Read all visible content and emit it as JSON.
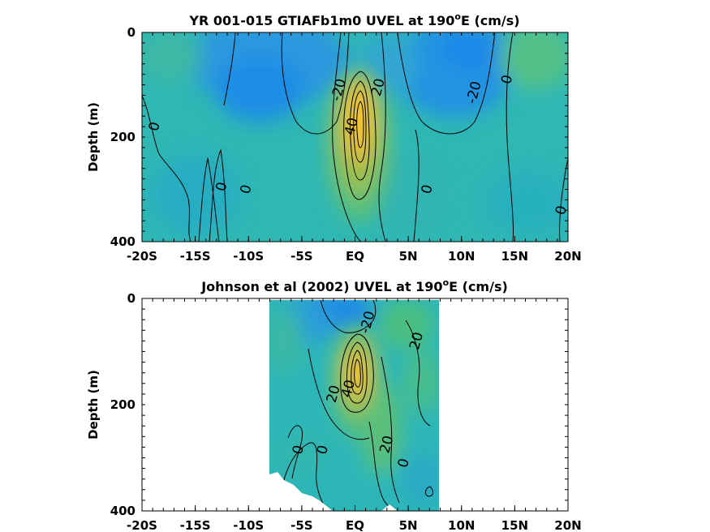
{
  "chart_data": [
    {
      "type": "heatmap",
      "title_prefix": "YR 001-015 GTIAFb1m0 UVEL at 190",
      "title_sup": "o",
      "title_suffix": "E (cm/s)",
      "ylabel": "Depth (m)",
      "xlabel": "",
      "xlim": [
        -20,
        20
      ],
      "ylim": [
        400,
        0
      ],
      "x_ticks": [
        -20,
        -15,
        -10,
        -5,
        0,
        5,
        10,
        15,
        20
      ],
      "x_tick_labels": [
        "-20S",
        "-15S",
        "-10S",
        "-5S",
        "EQ",
        "5N",
        "10N",
        "15N",
        "20N"
      ],
      "y_ticks": [
        0,
        200,
        400
      ],
      "y_tick_labels": [
        "0",
        "200",
        "400"
      ],
      "data_extent": [
        -20,
        20
      ],
      "colormap": "parula",
      "contour_labels": [
        {
          "text": "-20",
          "lat": -1.5,
          "depth": 110
        },
        {
          "text": "20",
          "lat": 2.2,
          "depth": 105
        },
        {
          "text": "40",
          "lat": -0.3,
          "depth": 180
        },
        {
          "text": "0",
          "lat": -18.8,
          "depth": 180
        },
        {
          "text": "0",
          "lat": -12.5,
          "depth": 295
        },
        {
          "text": "0",
          "lat": -10.2,
          "depth": 300
        },
        {
          "text": "0",
          "lat": 6.8,
          "depth": 300
        },
        {
          "text": "-20",
          "lat": 11.2,
          "depth": 115
        },
        {
          "text": "0",
          "lat": 14.3,
          "depth": 90
        },
        {
          "text": "0",
          "lat": 19.4,
          "depth": 340
        }
      ]
    },
    {
      "type": "heatmap",
      "title_prefix": "Johnson et al (2002) UVEL at 190",
      "title_sup": "o",
      "title_suffix": "E (cm/s)",
      "ylabel": "Depth (m)",
      "xlabel": "",
      "xlim": [
        -20,
        20
      ],
      "ylim": [
        400,
        0
      ],
      "x_ticks": [
        -20,
        -15,
        -10,
        -5,
        0,
        5,
        10,
        15,
        20
      ],
      "x_tick_labels": [
        "-20S",
        "-15S",
        "-10S",
        "-5S",
        "EQ",
        "5N",
        "10N",
        "15N",
        "20N"
      ],
      "y_ticks": [
        0,
        200,
        400
      ],
      "y_tick_labels": [
        "0",
        "200",
        "400"
      ],
      "data_extent": [
        -8,
        8
      ],
      "colormap": "parula",
      "contour_labels": [
        {
          "text": "-20",
          "lat": 1.2,
          "depth": 45
        },
        {
          "text": "20",
          "lat": 5.8,
          "depth": 80
        },
        {
          "text": "20",
          "lat": -2.0,
          "depth": 180
        },
        {
          "text": "40",
          "lat": -0.6,
          "depth": 170
        },
        {
          "text": "0",
          "lat": -5.3,
          "depth": 285
        },
        {
          "text": "0",
          "lat": -3.0,
          "depth": 285
        },
        {
          "text": "20",
          "lat": 3.0,
          "depth": 275
        },
        {
          "text": "0",
          "lat": 4.6,
          "depth": 310
        }
      ]
    }
  ]
}
